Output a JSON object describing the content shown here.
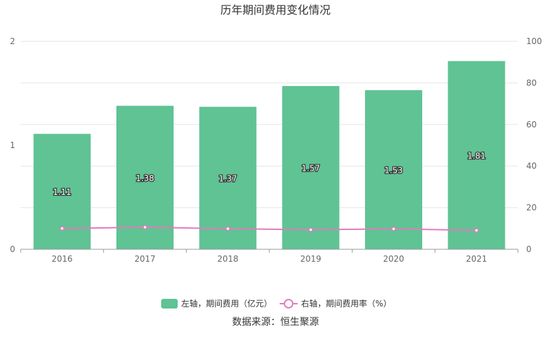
{
  "chart_data": {
    "type": "bar",
    "title": "历年期间费用变化情况",
    "categories": [
      "2016",
      "2017",
      "2018",
      "2019",
      "2020",
      "2021"
    ],
    "series": [
      {
        "name": "左轴，期间费用（亿元）",
        "type": "bar",
        "axis": "left",
        "color": "#5fc393",
        "values": [
          1.11,
          1.38,
          1.37,
          1.57,
          1.53,
          1.81
        ],
        "labels": [
          "1.11",
          "1.38",
          "1.37",
          "1.57",
          "1.53",
          "1.81"
        ]
      },
      {
        "name": "右轴，期间费用率（%）",
        "type": "line",
        "axis": "right",
        "color": "#e27bc0",
        "values": [
          10.0,
          10.6,
          9.9,
          9.4,
          9.8,
          9.1
        ]
      }
    ],
    "y_left": {
      "ylim": [
        0,
        2
      ],
      "ticks": [
        "0",
        "1",
        "2"
      ]
    },
    "y_right": {
      "ylim": [
        0,
        100
      ],
      "ticks": [
        "0",
        "20",
        "40",
        "60",
        "80",
        "100"
      ]
    },
    "grid": true,
    "legend_position": "bottom"
  },
  "footer": {
    "source": "数据来源：恒生聚源"
  }
}
